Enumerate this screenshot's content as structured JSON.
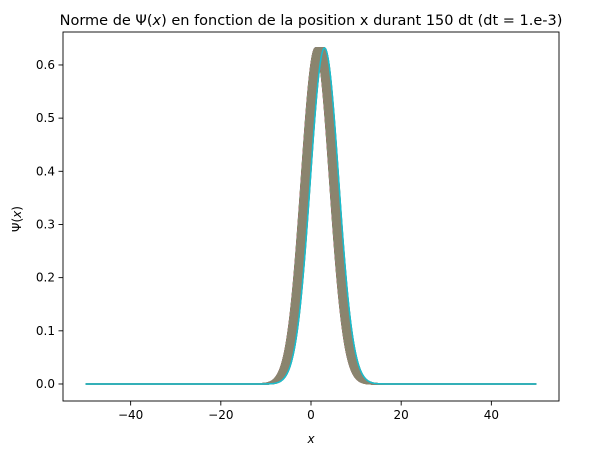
{
  "chart_data": {
    "type": "line",
    "title": "Norme de Ψ(x) en fonction de la position x durant 150 dt (dt = 1.e-3)",
    "title_parts": {
      "prefix": "Norme de Ψ(",
      "var": "x",
      "suffix": ") en fonction de la position x durant 150 dt (dt = 1.e-3)"
    },
    "xlabel": "x",
    "ylabel": "Ψ(x)",
    "ylabel_parts": {
      "prefix": "Ψ(",
      "var": "x",
      "suffix": ")"
    },
    "xlim": [
      -55,
      55
    ],
    "ylim": [
      -0.032,
      0.662
    ],
    "x_ticks": [
      -40,
      -20,
      0,
      20,
      40
    ],
    "x_tick_labels": [
      "−40",
      "−20",
      "0",
      "20",
      "40"
    ],
    "y_ticks": [
      0.0,
      0.1,
      0.2,
      0.3,
      0.4,
      0.5,
      0.6
    ],
    "y_tick_labels": [
      "0.0",
      "0.1",
      "0.2",
      "0.3",
      "0.4",
      "0.5",
      "0.6"
    ],
    "grid": false,
    "legend": "none",
    "x_range": [
      -50,
      50
    ],
    "curve_count": 150,
    "amplitude": 0.632,
    "center_start": 1.0,
    "center_end": 3.0,
    "width_sigma": 3.15,
    "series_colors": [
      "#1f77b4",
      "#ff7f0e",
      "#2ca02c",
      "#d62728",
      "#9467bd",
      "#8c564b",
      "#e377c2",
      "#7f7f7f",
      "#bcbd22",
      "#17becf"
    ],
    "bulk_color": "#8c8670",
    "last_color": "#17becf"
  }
}
